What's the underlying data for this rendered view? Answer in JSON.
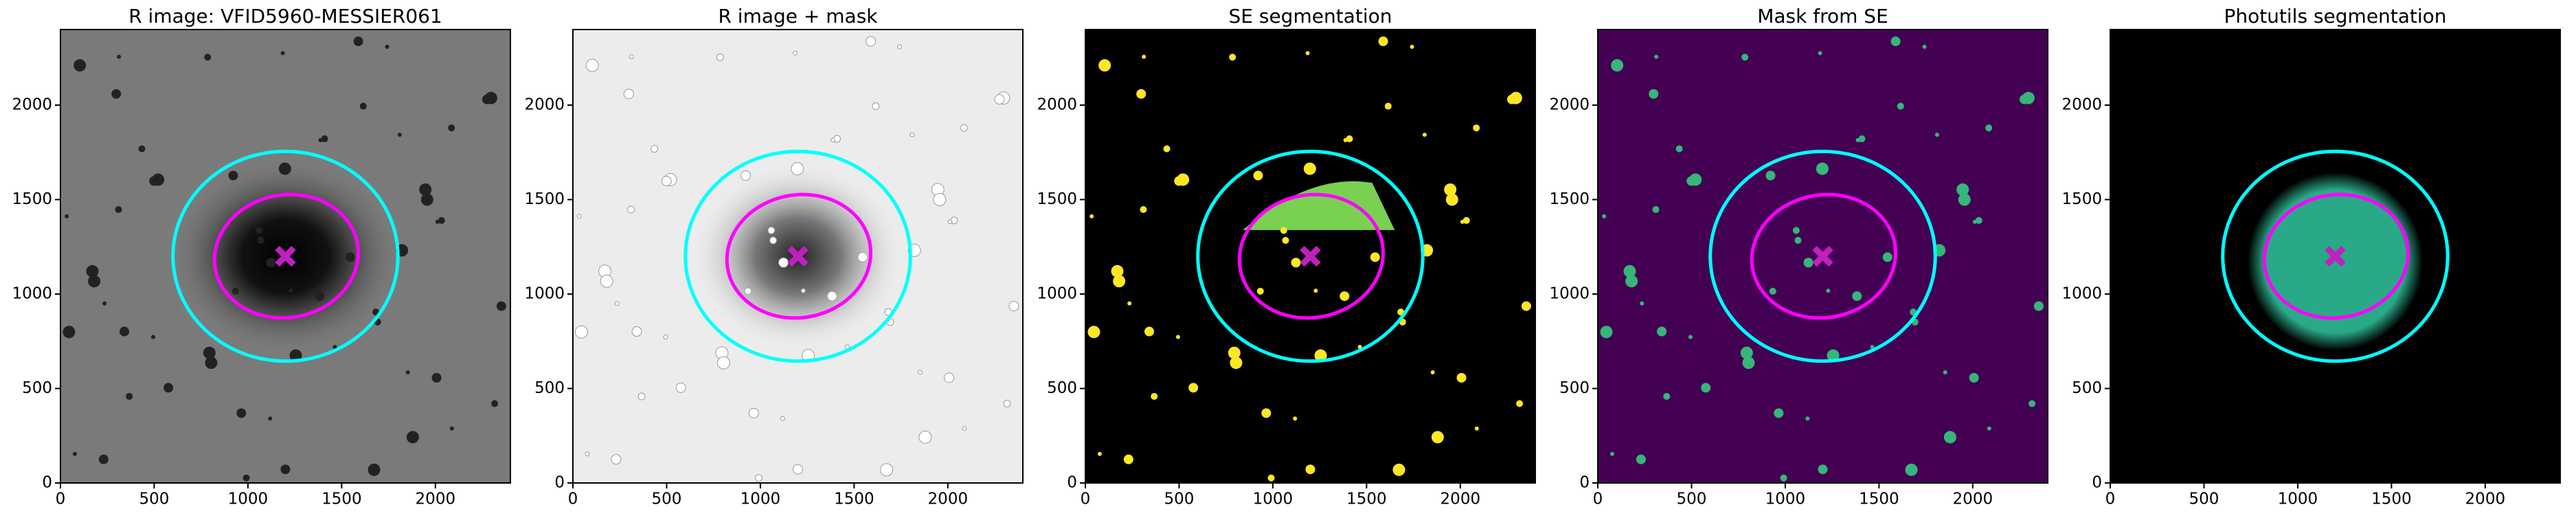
{
  "chart_data": [
    {
      "type": "image",
      "title": "R image: VFID5960-MESSIER061",
      "xlim": [
        0,
        2400
      ],
      "ylim": [
        0,
        2400
      ],
      "xticks": [
        0,
        500,
        1000,
        1500,
        2000
      ],
      "yticks": [
        0,
        500,
        1000,
        1500,
        2000
      ],
      "ellipses": [
        {
          "center": [
            1200,
            1200
          ],
          "axes": [
            600,
            555
          ],
          "angle": 0,
          "color": "#00ffff"
        },
        {
          "center": [
            1205,
            1200
          ],
          "axes": [
            385,
            325
          ],
          "angle": -10,
          "color": "#ff00ff"
        }
      ],
      "marker": {
        "x": 1200,
        "y": 1200,
        "color": "#c020c0"
      }
    },
    {
      "type": "image",
      "title": "R image + mask",
      "xlim": [
        0,
        2400
      ],
      "ylim": [
        0,
        2400
      ],
      "xticks": [
        0,
        500,
        1000,
        1500,
        2000
      ],
      "yticks": [
        0,
        500,
        1000,
        1500,
        2000
      ],
      "ellipses": [
        {
          "center": [
            1200,
            1200
          ],
          "axes": [
            600,
            555
          ],
          "angle": 0,
          "color": "#00ffff"
        },
        {
          "center": [
            1205,
            1200
          ],
          "axes": [
            385,
            325
          ],
          "angle": -10,
          "color": "#ff00ff"
        }
      ],
      "marker": {
        "x": 1200,
        "y": 1200,
        "color": "#c020c0"
      }
    },
    {
      "type": "image",
      "title": "SE segmentation",
      "xlim": [
        0,
        2400
      ],
      "ylim": [
        0,
        2400
      ],
      "xticks": [
        0,
        500,
        1000,
        1500,
        2000
      ],
      "yticks": [
        0,
        500,
        1000,
        1500,
        2000
      ],
      "ellipses": [
        {
          "center": [
            1200,
            1200
          ],
          "axes": [
            600,
            555
          ],
          "angle": 0,
          "color": "#00ffff"
        },
        {
          "center": [
            1205,
            1200
          ],
          "axes": [
            385,
            325
          ],
          "angle": -10,
          "color": "#ff00ff"
        }
      ],
      "marker": {
        "x": 1200,
        "y": 1200,
        "color": "#c020c0"
      }
    },
    {
      "type": "image",
      "title": "Mask from SE",
      "xlim": [
        0,
        2400
      ],
      "ylim": [
        0,
        2400
      ],
      "xticks": [
        0,
        500,
        1000,
        1500,
        2000
      ],
      "yticks": [
        0,
        500,
        1000,
        1500,
        2000
      ],
      "ellipses": [
        {
          "center": [
            1200,
            1200
          ],
          "axes": [
            600,
            555
          ],
          "angle": 0,
          "color": "#00ffff"
        },
        {
          "center": [
            1205,
            1200
          ],
          "axes": [
            385,
            325
          ],
          "angle": -10,
          "color": "#ff00ff"
        }
      ],
      "marker": {
        "x": 1200,
        "y": 1200,
        "color": "#c020c0"
      }
    },
    {
      "type": "image",
      "title": "Photutils segmentation",
      "xlim": [
        0,
        2400
      ],
      "ylim": [
        0,
        2400
      ],
      "xticks": [
        0,
        500,
        1000,
        1500,
        2000
      ],
      "yticks": [
        0,
        500,
        1000,
        1500,
        2000
      ],
      "ellipses": [
        {
          "center": [
            1200,
            1200
          ],
          "axes": [
            600,
            555
          ],
          "angle": 0,
          "color": "#00ffff"
        },
        {
          "center": [
            1205,
            1200
          ],
          "axes": [
            385,
            325
          ],
          "angle": -10,
          "color": "#ff00ff"
        }
      ],
      "marker": {
        "x": 1200,
        "y": 1200,
        "color": "#c020c0"
      }
    }
  ]
}
